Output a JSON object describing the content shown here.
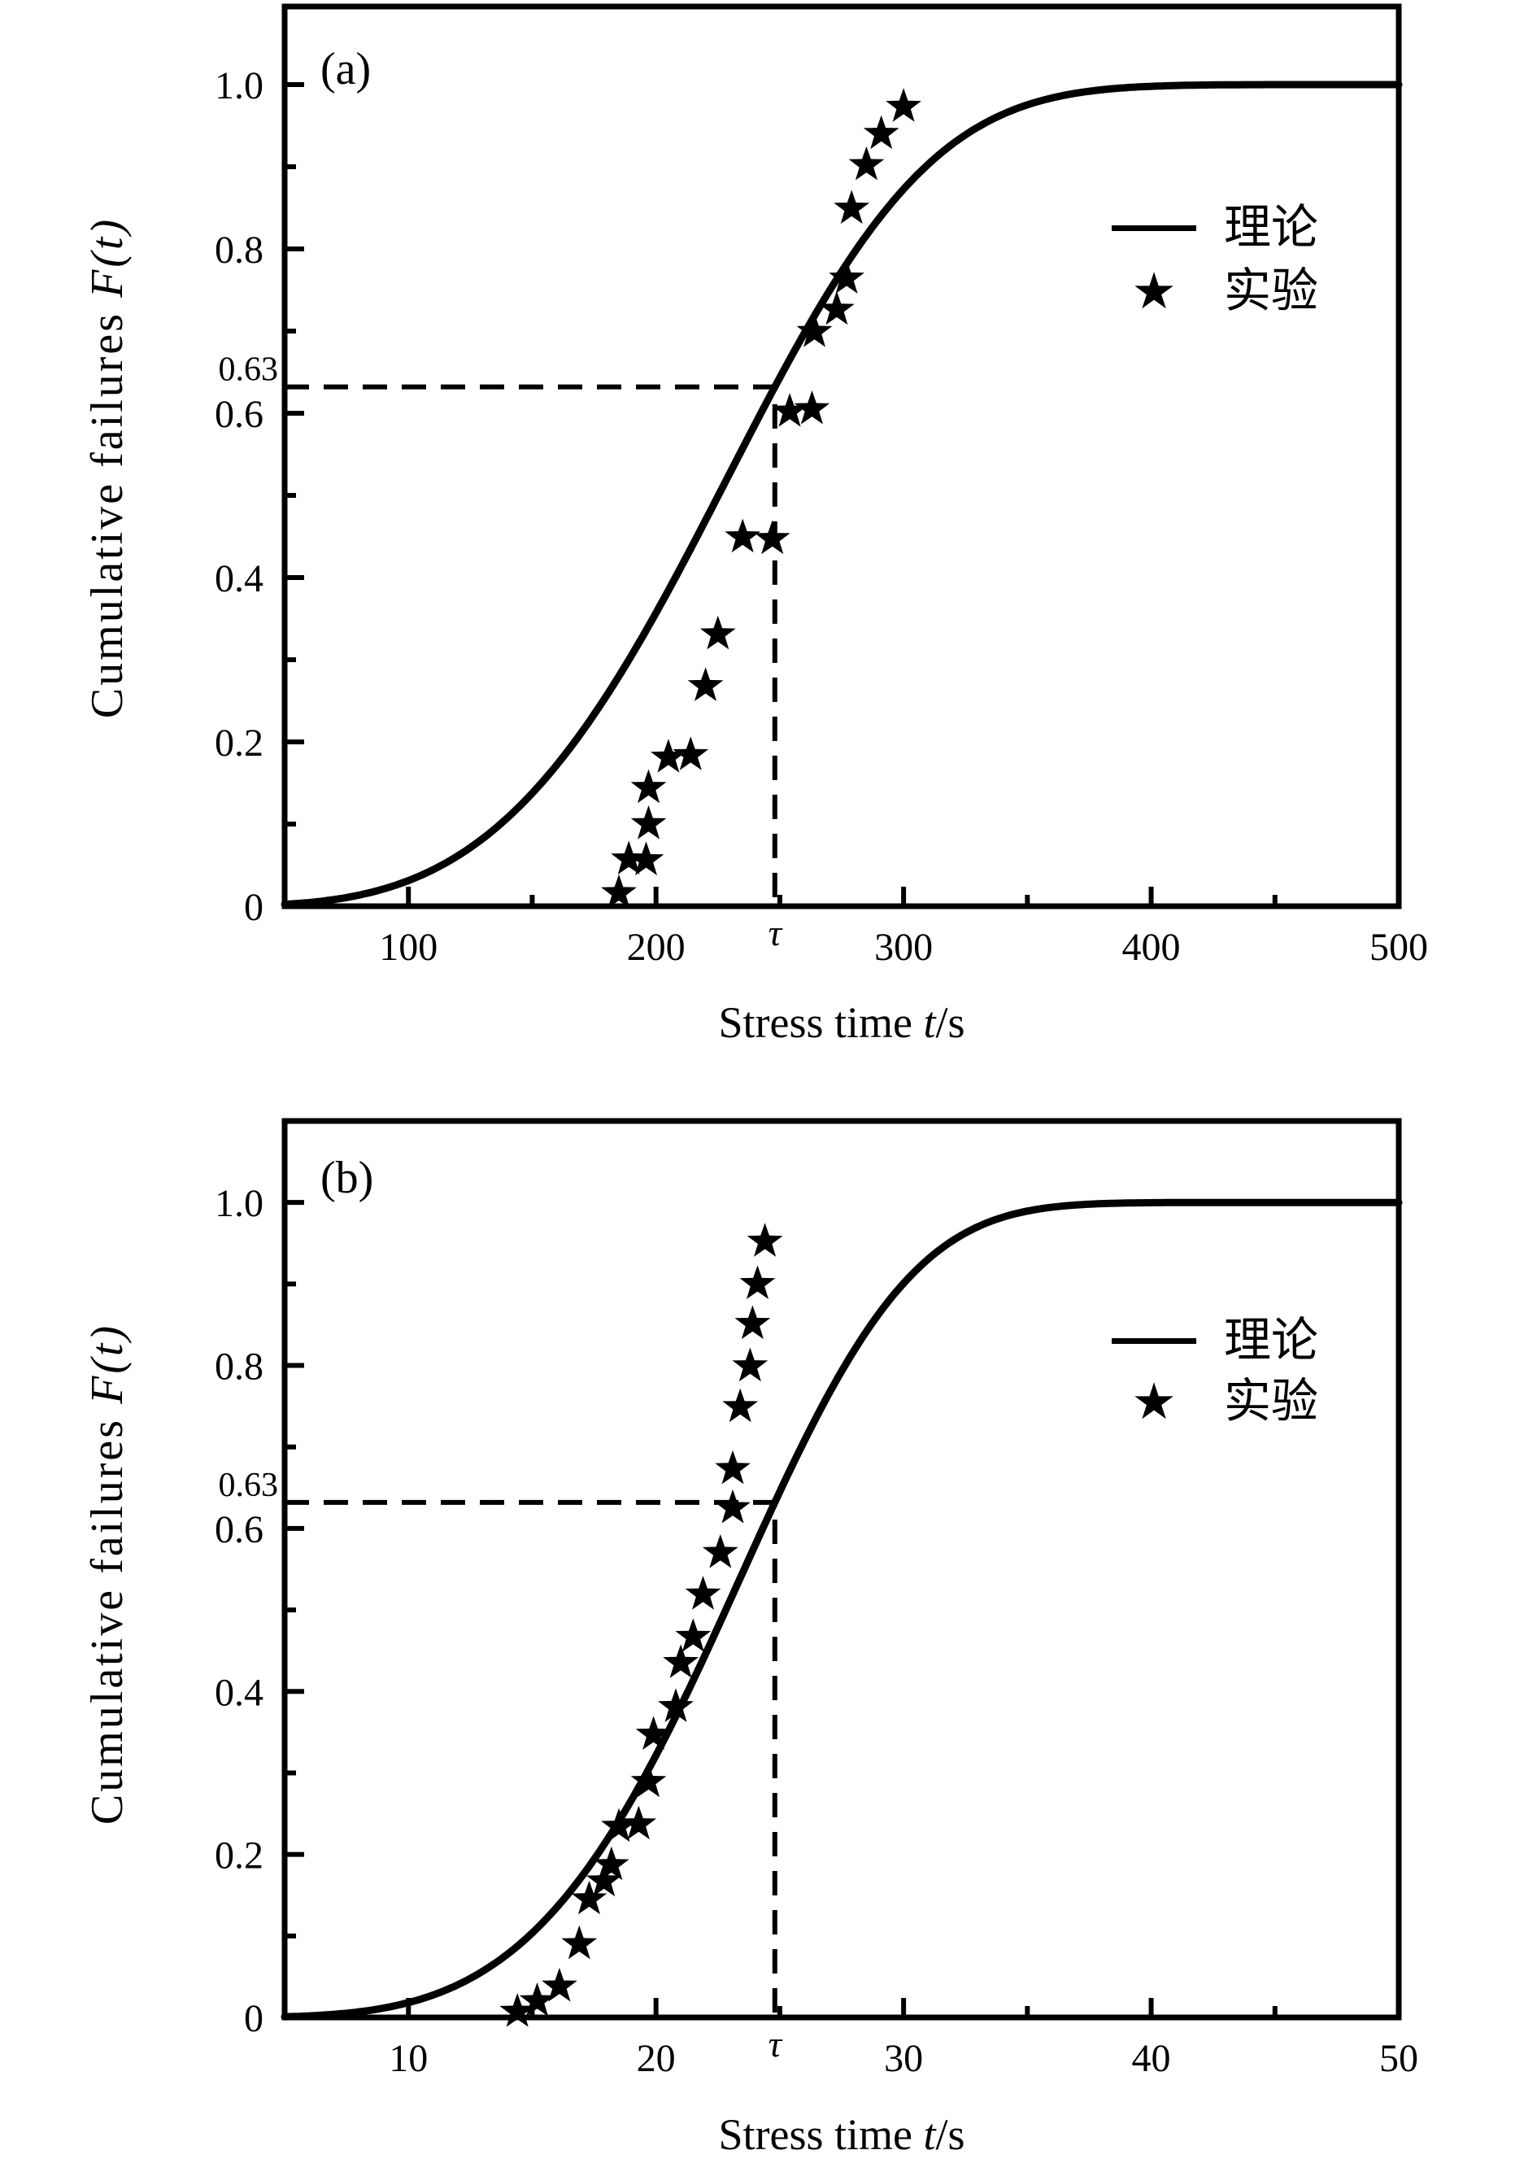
{
  "figure": {
    "background": "#ffffff",
    "ink_color": "#000000",
    "description_texts": {
      "xlabel_full": "Stress time t/s",
      "ylabel_full": "Cumulative failures F(t)"
    }
  },
  "chart_data": [
    {
      "type": "scatter",
      "panel_label": "(a)",
      "title": "",
      "xlabel": "Stress time t/s",
      "xlabel_parts": {
        "prefix": "Stress time ",
        "var": "t",
        "suffix": "/s"
      },
      "ylabel": "Cumulative failures F(t)",
      "ylabel_parts": {
        "prefix": "Cumulative failures ",
        "var": "F(t)"
      },
      "xlim": [
        50,
        500
      ],
      "ylim": [
        0,
        1.095
      ],
      "x_major_ticks": [
        100,
        200,
        300,
        400,
        500
      ],
      "x_tick_labels": [
        "100",
        "200",
        "300",
        "400",
        "500"
      ],
      "x_minor_ticks": [
        150,
        250,
        350,
        450
      ],
      "y_major_ticks": [
        0,
        0.2,
        0.4,
        0.6,
        0.8,
        1.0
      ],
      "y_tick_labels": [
        "0",
        "0.2",
        "0.4",
        "0.6",
        "0.8",
        "1.0"
      ],
      "y_minor_ticks": [
        0.1,
        0.3,
        0.5,
        0.7,
        0.9
      ],
      "grid": false,
      "tau": 248,
      "tau_label": "τ",
      "f63": 0.632,
      "f63_label": "0.63",
      "legend_position": "inside-upper-right",
      "legend": [
        {
          "marker": "line",
          "label": "理论"
        },
        {
          "marker": "star",
          "label": "实验"
        }
      ],
      "theory_curve": {
        "model": "weibull_cdf",
        "formula": "F(t) = 1 - exp(-(t/eta)^m)",
        "eta": 248,
        "m": 3.8,
        "samples": [
          [
            50,
            0.002
          ],
          [
            75,
            0.011
          ],
          [
            100,
            0.031
          ],
          [
            125,
            0.071
          ],
          [
            150,
            0.138
          ],
          [
            175,
            0.234
          ],
          [
            200,
            0.357
          ],
          [
            225,
            0.499
          ],
          [
            248,
            0.632
          ],
          [
            275,
            0.772
          ],
          [
            300,
            0.873
          ],
          [
            325,
            0.939
          ],
          [
            350,
            0.975
          ],
          [
            400,
            0.998
          ],
          [
            450,
            1.0
          ],
          [
            500,
            1.0
          ]
        ]
      },
      "experimental_points": [
        [
          185,
          0.016
        ],
        [
          189,
          0.057
        ],
        [
          196,
          0.056
        ],
        [
          197,
          0.1
        ],
        [
          197,
          0.144
        ],
        [
          205,
          0.181
        ],
        [
          214,
          0.184
        ],
        [
          220,
          0.268
        ],
        [
          225,
          0.331
        ],
        [
          235,
          0.449
        ],
        [
          247,
          0.447
        ],
        [
          254,
          0.602
        ],
        [
          263,
          0.605
        ],
        [
          264,
          0.699
        ],
        [
          273,
          0.726
        ],
        [
          277,
          0.764
        ],
        [
          279,
          0.849
        ],
        [
          285,
          0.902
        ],
        [
          291,
          0.94
        ],
        [
          300,
          0.973
        ]
      ]
    },
    {
      "type": "scatter",
      "panel_label": "(b)",
      "title": "",
      "xlabel": "Stress time t/s",
      "xlabel_parts": {
        "prefix": "Stress time ",
        "var": "t",
        "suffix": "/s"
      },
      "ylabel": "Cumulative failures F(t)",
      "ylabel_parts": {
        "prefix": "Cumulative failures ",
        "var": "F(t)"
      },
      "xlim": [
        5,
        50
      ],
      "ylim": [
        0,
        1.1
      ],
      "x_major_ticks": [
        10,
        20,
        30,
        40,
        50
      ],
      "x_tick_labels": [
        "10",
        "20",
        "30",
        "40",
        "50"
      ],
      "x_minor_ticks": [
        15,
        25,
        35,
        45
      ],
      "y_major_ticks": [
        0,
        0.2,
        0.4,
        0.6,
        0.8,
        1.0
      ],
      "y_tick_labels": [
        "0",
        "0.2",
        "0.4",
        "0.6",
        "0.8",
        "1.0"
      ],
      "y_minor_ticks": [
        0.1,
        0.3,
        0.5,
        0.7,
        0.9
      ],
      "grid": false,
      "tau": 24.8,
      "tau_label": "τ",
      "f63": 0.632,
      "f63_label": "0.63",
      "legend_position": "inside-upper-right",
      "legend": [
        {
          "marker": "line",
          "label": "理论"
        },
        {
          "marker": "star",
          "label": "实验"
        }
      ],
      "theory_curve": {
        "model": "weibull_cdf",
        "formula": "F(t) = 1 - exp(-(t/eta)^m)",
        "eta": 24.8,
        "m": 4.4,
        "samples": [
          [
            5,
            0.0
          ],
          [
            10,
            0.018
          ],
          [
            12.5,
            0.048
          ],
          [
            15,
            0.104
          ],
          [
            17.5,
            0.194
          ],
          [
            20,
            0.322
          ],
          [
            22.5,
            0.479
          ],
          [
            24.8,
            0.632
          ],
          [
            27.5,
            0.793
          ],
          [
            30,
            0.901
          ],
          [
            32.5,
            0.963
          ],
          [
            35,
            0.989
          ],
          [
            40,
            1.0
          ],
          [
            45,
            1.0
          ],
          [
            50,
            1.0
          ]
        ]
      },
      "experimental_points": [
        [
          14.4,
          0.007
        ],
        [
          15.2,
          0.02
        ],
        [
          16.1,
          0.038
        ],
        [
          16.9,
          0.09
        ],
        [
          17.3,
          0.145
        ],
        [
          17.9,
          0.167
        ],
        [
          18.2,
          0.187
        ],
        [
          18.5,
          0.234
        ],
        [
          19.3,
          0.237
        ],
        [
          19.7,
          0.289
        ],
        [
          19.9,
          0.347
        ],
        [
          20.8,
          0.381
        ],
        [
          21.0,
          0.435
        ],
        [
          21.5,
          0.467
        ],
        [
          21.9,
          0.519
        ],
        [
          22.6,
          0.57
        ],
        [
          23.1,
          0.625
        ],
        [
          23.1,
          0.673
        ],
        [
          23.4,
          0.749
        ],
        [
          23.8,
          0.799
        ],
        [
          23.9,
          0.851
        ],
        [
          24.1,
          0.9
        ],
        [
          24.4,
          0.952
        ]
      ]
    }
  ]
}
